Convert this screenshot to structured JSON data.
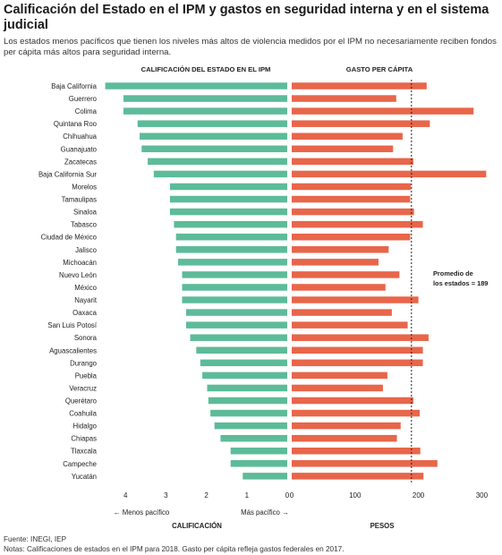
{
  "title": "Calificación del Estado en el IPM y gastos en seguridad interna y en el sistema judicial",
  "subtitle": "Los estados menos pacíficos que tienen los niveles más altos de violencia medidos por el IPM no necesariamente reciben fondos per cápita más altos para seguridad interna.",
  "source": "Fuente: INEGI, IEP",
  "notes": "Notas: Calificaciones de estados en el IPM para 2018. Gasto per cápita refleja gastos federales en 2017.",
  "colors": {
    "score": "#5dbb9a",
    "spend": "#e8664a",
    "average_line": "#222222"
  },
  "chart_data": [
    {
      "type": "bar",
      "orientation": "horizontal",
      "header": "CALIFICACIÓN DEL ESTADO EN EL IPM",
      "xlabel": "CALIFICACIÓN",
      "axis_direction": "reversed",
      "xlim": [
        0,
        4.5
      ],
      "xticks": [
        4,
        3,
        2,
        1,
        0
      ],
      "direction_labels": {
        "left": "← Menos pacífico",
        "right": "Más pacífico →"
      },
      "categories": [
        "Baja California",
        "Guerrero",
        "Colima",
        "Quintana Roo",
        "Chihuahua",
        "Guanajuato",
        "Zacatecas",
        "Baja California Sur",
        "Morelos",
        "Tamaulipas",
        "Sinaloa",
        "Tabasco",
        "Ciudad de México",
        "Jalisco",
        "Michoacán",
        "Nuevo León",
        "México",
        "Nayarit",
        "Oaxaca",
        "San Luis Potosí",
        "Sonora",
        "Aguascalientes",
        "Durango",
        "Puebla",
        "Veracruz",
        "Querétaro",
        "Coahuila",
        "Hidalgo",
        "Chiapas",
        "Tlaxcala",
        "Campeche",
        "Yucatán"
      ],
      "values": [
        4.5,
        4.05,
        4.05,
        3.7,
        3.65,
        3.6,
        3.45,
        3.3,
        2.9,
        2.9,
        2.9,
        2.8,
        2.75,
        2.75,
        2.7,
        2.6,
        2.6,
        2.6,
        2.5,
        2.5,
        2.4,
        2.25,
        2.15,
        2.1,
        1.98,
        1.95,
        1.9,
        1.8,
        1.65,
        1.4,
        1.4,
        1.1
      ]
    },
    {
      "type": "bar",
      "orientation": "horizontal",
      "header": "GASTO PER CÁPITA",
      "xlabel": "PESOS",
      "xlim": [
        0,
        310
      ],
      "xticks": [
        0,
        100,
        200,
        300
      ],
      "average": {
        "value": 189,
        "label_line1": "Promedio de",
        "label_line2": "los estados = 189"
      },
      "categories": [
        "Baja California",
        "Guerrero",
        "Colima",
        "Quintana Roo",
        "Chihuahua",
        "Guanajuato",
        "Zacatecas",
        "Baja California Sur",
        "Morelos",
        "Tamaulipas",
        "Sinaloa",
        "Tabasco",
        "Ciudad de México",
        "Jalisco",
        "Michoacán",
        "Nuevo León",
        "México",
        "Nayarit",
        "Oaxaca",
        "San Luis Potosí",
        "Sonora",
        "Aguascalientes",
        "Durango",
        "Puebla",
        "Veracruz",
        "Querétaro",
        "Coahuila",
        "Hidalgo",
        "Chiapas",
        "Tlaxcala",
        "Campeche",
        "Yucatán"
      ],
      "values": [
        213,
        165,
        287,
        218,
        175,
        160,
        192,
        307,
        188,
        187,
        193,
        207,
        187,
        153,
        137,
        170,
        148,
        200,
        158,
        183,
        216,
        207,
        207,
        151,
        144,
        192,
        202,
        172,
        166,
        203,
        230,
        208
      ]
    }
  ]
}
